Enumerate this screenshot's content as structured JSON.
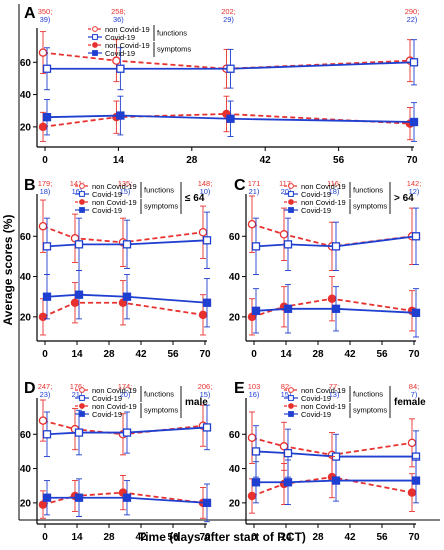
{
  "figure": {
    "ylabel": "Average scores (%)",
    "xlabel": "Time (days after start of RCT)",
    "x_ticks": [
      0,
      14,
      28,
      42,
      56,
      70
    ],
    "y_ticks": [
      20,
      40,
      60
    ],
    "ylim": [
      10,
      80
    ],
    "colors": {
      "non_covid": "#e8312e",
      "covid": "#1f3fd0"
    }
  },
  "chart_data": [
    {
      "panel": "A",
      "type": "line",
      "x": [
        0,
        14,
        35,
        70
      ],
      "ylim": [
        10,
        80
      ],
      "n_labels": [
        {
          "x": 0,
          "red": "350;",
          "blue": "39)"
        },
        {
          "x": 14,
          "red": "258;",
          "blue": "36)"
        },
        {
          "x": 35,
          "red": "202;",
          "blue": "29)"
        },
        {
          "x": 70,
          "red": "290;",
          "blue": "22)"
        }
      ],
      "legend": {
        "functions": "functions",
        "symptoms": "symptoms",
        "subgroup": ""
      },
      "series": [
        {
          "name": "non Covid-19",
          "group": "functions",
          "marker": "open-circle",
          "values": [
            66,
            61,
            56,
            61
          ],
          "err": [
            13,
            13,
            12,
            13
          ]
        },
        {
          "name": "Covid-19",
          "group": "functions",
          "marker": "open-square",
          "values": [
            56,
            56,
            56,
            60
          ],
          "err": [
            13,
            13,
            12,
            14
          ]
        },
        {
          "name": "non Covid-19",
          "group": "symptoms",
          "marker": "filled-circle",
          "values": [
            20,
            26,
            28,
            22
          ],
          "err": [
            9,
            10,
            11,
            10
          ]
        },
        {
          "name": "Covid-19",
          "group": "symptoms",
          "marker": "filled-square",
          "values": [
            26,
            27,
            25,
            23
          ],
          "err": [
            11,
            12,
            11,
            12
          ]
        }
      ]
    },
    {
      "panel": "B",
      "type": "line",
      "x": [
        0,
        14,
        35,
        70
      ],
      "ylim": [
        10,
        80
      ],
      "n_labels": [
        {
          "x": 0,
          "red": "179;",
          "blue": "18)"
        },
        {
          "x": 14,
          "red": "141;",
          "blue": "16)"
        },
        {
          "x": 35,
          "red": "135;",
          "blue": "15)"
        },
        {
          "x": 70,
          "red": "148;",
          "blue": "10)"
        }
      ],
      "legend": {
        "functions": "functions",
        "symptoms": "symptoms",
        "subgroup": "≤ 64"
      },
      "series": [
        {
          "name": "non Covid-19",
          "group": "functions",
          "marker": "open-circle",
          "values": [
            65,
            59,
            57,
            62
          ],
          "err": [
            13,
            12,
            12,
            13
          ]
        },
        {
          "name": "Covid-19",
          "group": "functions",
          "marker": "open-square",
          "values": [
            55,
            56,
            56,
            58
          ],
          "err": [
            14,
            13,
            12,
            14
          ]
        },
        {
          "name": "non Covid-19",
          "group": "symptoms",
          "marker": "filled-circle",
          "values": [
            20,
            27,
            27,
            21
          ],
          "err": [
            9,
            10,
            11,
            10
          ]
        },
        {
          "name": "Covid-19",
          "group": "symptoms",
          "marker": "filled-square",
          "values": [
            30,
            31,
            30,
            27
          ],
          "err": [
            11,
            12,
            11,
            12
          ]
        }
      ]
    },
    {
      "panel": "C",
      "type": "line",
      "x": [
        0,
        14,
        35,
        70
      ],
      "ylim": [
        10,
        80
      ],
      "n_labels": [
        {
          "x": 0,
          "red": "171",
          "blue": "21)"
        },
        {
          "x": 14,
          "red": "117;",
          "blue": "20)"
        },
        {
          "x": 35,
          "red": "116;",
          "blue": "18)"
        },
        {
          "x": 70,
          "red": "142;",
          "blue": "12)"
        }
      ],
      "legend": {
        "functions": "functions",
        "symptoms": "symptoms",
        "subgroup": "> 64"
      },
      "series": [
        {
          "name": "non Covid-19",
          "group": "functions",
          "marker": "open-circle",
          "values": [
            66,
            61,
            55,
            60
          ],
          "err": [
            14,
            13,
            12,
            14
          ]
        },
        {
          "name": "Covid-19",
          "group": "functions",
          "marker": "open-square",
          "values": [
            55,
            56,
            55,
            60
          ],
          "err": [
            14,
            13,
            12,
            14
          ]
        },
        {
          "name": "non Covid-19",
          "group": "symptoms",
          "marker": "filled-circle",
          "values": [
            20,
            25,
            29,
            23
          ],
          "err": [
            9,
            10,
            11,
            10
          ]
        },
        {
          "name": "Covid-19",
          "group": "symptoms",
          "marker": "filled-square",
          "values": [
            23,
            24,
            24,
            22
          ],
          "err": [
            11,
            12,
            11,
            12
          ]
        }
      ]
    },
    {
      "panel": "D",
      "type": "line",
      "x": [
        0,
        14,
        35,
        70
      ],
      "ylim": [
        10,
        80
      ],
      "n_labels": [
        {
          "x": 0,
          "red": "247;",
          "blue": "23)"
        },
        {
          "x": 14,
          "red": "176;",
          "blue": "21)"
        },
        {
          "x": 35,
          "red": "174;",
          "blue": "20)"
        },
        {
          "x": 70,
          "red": "206;",
          "blue": "15)"
        }
      ],
      "legend": {
        "functions": "functions",
        "symptoms": "symptoms",
        "subgroup": "male"
      },
      "series": [
        {
          "name": "non Covid-19",
          "group": "functions",
          "marker": "open-circle",
          "values": [
            68,
            63,
            60,
            65
          ],
          "err": [
            12,
            12,
            12,
            12
          ]
        },
        {
          "name": "Covid-19",
          "group": "functions",
          "marker": "open-square",
          "values": [
            60,
            61,
            61,
            64
          ],
          "err": [
            13,
            13,
            12,
            13
          ]
        },
        {
          "name": "non Covid-19",
          "group": "symptoms",
          "marker": "filled-circle",
          "values": [
            19,
            24,
            26,
            20
          ],
          "err": [
            8,
            9,
            10,
            9
          ]
        },
        {
          "name": "Covid-19",
          "group": "symptoms",
          "marker": "filled-square",
          "values": [
            23,
            23,
            23,
            20
          ],
          "err": [
            10,
            11,
            10,
            11
          ]
        }
      ]
    },
    {
      "panel": "E",
      "type": "line",
      "x": [
        0,
        14,
        35,
        70
      ],
      "ylim": [
        10,
        80
      ],
      "n_labels": [
        {
          "x": 0,
          "red": "103",
          "blue": "16)"
        },
        {
          "x": 14,
          "red": "82;",
          "blue": "15)"
        },
        {
          "x": 35,
          "red": "77;",
          "blue": "13)"
        },
        {
          "x": 70,
          "red": "84;",
          "blue": "7)"
        }
      ],
      "legend": {
        "functions": "functions",
        "symptoms": "symptoms",
        "subgroup": "female"
      },
      "series": [
        {
          "name": "non Covid-19",
          "group": "functions",
          "marker": "open-circle",
          "values": [
            58,
            53,
            48,
            55
          ],
          "err": [
            15,
            14,
            13,
            14
          ]
        },
        {
          "name": "Covid-19",
          "group": "functions",
          "marker": "open-square",
          "values": [
            50,
            49,
            47,
            47
          ],
          "err": [
            15,
            14,
            13,
            15
          ]
        },
        {
          "name": "non Covid-19",
          "group": "symptoms",
          "marker": "filled-circle",
          "values": [
            24,
            31,
            35,
            26
          ],
          "err": [
            10,
            12,
            12,
            11
          ]
        },
        {
          "name": "Covid-19",
          "group": "symptoms",
          "marker": "filled-square",
          "values": [
            32,
            32,
            33,
            33
          ],
          "err": [
            12,
            13,
            12,
            13
          ]
        }
      ]
    }
  ]
}
